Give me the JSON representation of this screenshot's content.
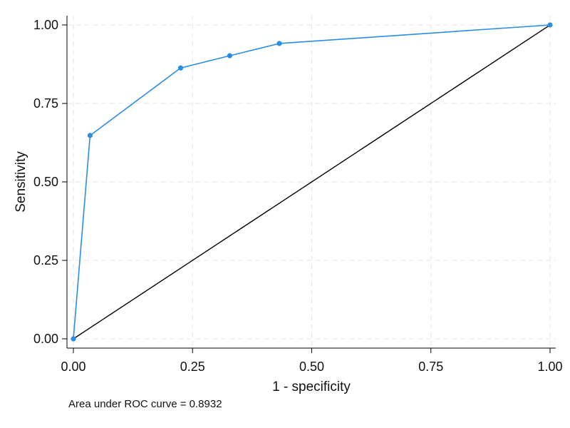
{
  "chart_data": {
    "type": "line",
    "title": "",
    "xlabel": "1 - specificity",
    "ylabel": "Sensitivity",
    "xlim": [
      0,
      1
    ],
    "ylim": [
      0,
      1
    ],
    "x_ticks": [
      "0.00",
      "0.25",
      "0.50",
      "0.75",
      "1.00"
    ],
    "y_ticks": [
      "0.00",
      "0.25",
      "0.50",
      "0.75",
      "1.00"
    ],
    "grid": true,
    "series": [
      {
        "x": [
          0.0,
          0.035,
          0.225,
          0.328,
          0.432,
          1.0
        ],
        "y": [
          0.0,
          0.648,
          0.863,
          0.902,
          0.941,
          1.0
        ],
        "color": "#2a8de6",
        "markers": true
      },
      {
        "x": [
          0,
          1
        ],
        "y": [
          0,
          1
        ],
        "color": "#000000",
        "markers": false
      }
    ],
    "annotation": "Area under ROC curve = 0.8932"
  }
}
